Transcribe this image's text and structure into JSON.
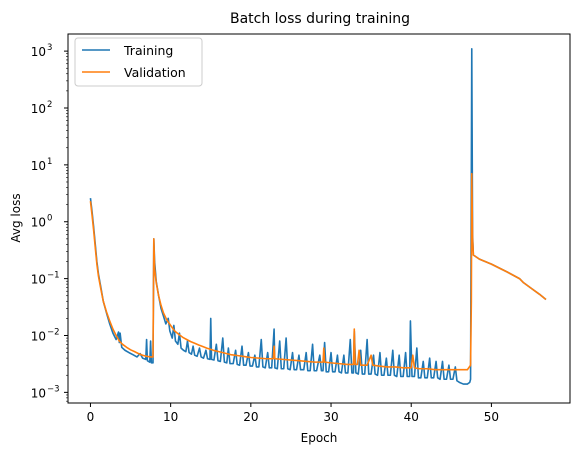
{
  "chart_data": {
    "type": "line",
    "title": "Batch loss during training",
    "xlabel": "Epoch",
    "ylabel": "Avg loss",
    "yscale": "log",
    "xlim": [
      -2.8,
      59.8
    ],
    "ylim": [
      0.00065,
      2000
    ],
    "x_ticks": [
      0,
      10,
      20,
      30,
      40,
      50
    ],
    "x_tick_labels": [
      "0",
      "10",
      "20",
      "30",
      "40",
      "50"
    ],
    "y_ticks": [
      0.001,
      0.01,
      0.1,
      1,
      10,
      100,
      1000
    ],
    "y_tick_labels": [
      "10",
      "10",
      "10",
      "10",
      "10",
      "10",
      "10"
    ],
    "y_tick_exponents": [
      "−3",
      "−2",
      "−1",
      "0",
      "1",
      "2",
      "3"
    ],
    "grid": false,
    "legend_position": "top-left",
    "colors": {
      "training": "#1f77b4",
      "validation": "#ff7f0e"
    },
    "series": [
      {
        "name": "Training",
        "color": "#1f77b4",
        "points": [
          [
            0,
            2.6
          ],
          [
            0.2,
            1.5
          ],
          [
            0.4,
            0.8
          ],
          [
            0.6,
            0.4
          ],
          [
            0.8,
            0.2
          ],
          [
            1.0,
            0.12
          ],
          [
            1.3,
            0.07
          ],
          [
            1.6,
            0.04
          ],
          [
            2.0,
            0.025
          ],
          [
            2.4,
            0.016
          ],
          [
            2.8,
            0.011
          ],
          [
            3.2,
            0.0085
          ],
          [
            3.5,
            0.0115
          ],
          [
            3.6,
            0.0075
          ],
          [
            3.7,
            0.011
          ],
          [
            3.9,
            0.0062
          ],
          [
            4.3,
            0.0055
          ],
          [
            4.8,
            0.005
          ],
          [
            5.3,
            0.0046
          ],
          [
            5.8,
            0.0042
          ],
          [
            6.2,
            0.0048
          ],
          [
            6.5,
            0.004
          ],
          [
            6.9,
            0.0038
          ],
          [
            7.0,
            0.0085
          ],
          [
            7.1,
            0.0036
          ],
          [
            7.4,
            0.0034
          ],
          [
            7.5,
            0.008
          ],
          [
            7.6,
            0.0033
          ],
          [
            7.8,
            0.0033
          ],
          [
            7.9,
            0.5
          ],
          [
            8.0,
            0.2
          ],
          [
            8.2,
            0.09
          ],
          [
            8.5,
            0.05
          ],
          [
            8.8,
            0.03
          ],
          [
            9.1,
            0.022
          ],
          [
            9.4,
            0.016
          ],
          [
            9.7,
            0.02
          ],
          [
            9.9,
            0.012
          ],
          [
            10.2,
            0.009
          ],
          [
            10.4,
            0.015
          ],
          [
            10.6,
            0.008
          ],
          [
            10.9,
            0.007
          ],
          [
            11.1,
            0.011
          ],
          [
            11.3,
            0.006
          ],
          [
            11.6,
            0.0055
          ],
          [
            11.9,
            0.0052
          ],
          [
            12.1,
            0.008
          ],
          [
            12.3,
            0.005
          ],
          [
            12.6,
            0.0047
          ],
          [
            12.8,
            0.0065
          ],
          [
            13.0,
            0.0045
          ],
          [
            13.3,
            0.0043
          ],
          [
            13.6,
            0.006
          ],
          [
            13.8,
            0.0042
          ],
          [
            14.1,
            0.004
          ],
          [
            14.4,
            0.0055
          ],
          [
            14.6,
            0.0039
          ],
          [
            14.9,
            0.0038
          ],
          [
            15.0,
            0.02
          ],
          [
            15.1,
            0.0038
          ],
          [
            15.4,
            0.0037
          ],
          [
            15.7,
            0.007
          ],
          [
            15.9,
            0.0036
          ],
          [
            16.2,
            0.0035
          ],
          [
            16.5,
            0.009
          ],
          [
            16.7,
            0.0034
          ],
          [
            17.0,
            0.0033
          ],
          [
            17.2,
            0.006
          ],
          [
            17.4,
            0.0032
          ],
          [
            17.8,
            0.0032
          ],
          [
            18.1,
            0.0055
          ],
          [
            18.3,
            0.0031
          ],
          [
            18.6,
            0.003
          ],
          [
            18.9,
            0.0065
          ],
          [
            19.1,
            0.003
          ],
          [
            19.4,
            0.003
          ],
          [
            19.7,
            0.005
          ],
          [
            19.9,
            0.0029
          ],
          [
            20.2,
            0.0029
          ],
          [
            20.5,
            0.0045
          ],
          [
            20.7,
            0.0028
          ],
          [
            21.0,
            0.0028
          ],
          [
            21.3,
            0.0085
          ],
          [
            21.5,
            0.0028
          ],
          [
            21.8,
            0.0027
          ],
          [
            22.1,
            0.005
          ],
          [
            22.3,
            0.0027
          ],
          [
            22.6,
            0.0027
          ],
          [
            22.9,
            0.013
          ],
          [
            23.0,
            0.0027
          ],
          [
            23.3,
            0.0026
          ],
          [
            23.6,
            0.008
          ],
          [
            23.8,
            0.0026
          ],
          [
            24.1,
            0.0026
          ],
          [
            24.4,
            0.009
          ],
          [
            24.6,
            0.0026
          ],
          [
            24.9,
            0.0025
          ],
          [
            25.2,
            0.005
          ],
          [
            25.4,
            0.0025
          ],
          [
            25.7,
            0.0025
          ],
          [
            26.0,
            0.0045
          ],
          [
            26.2,
            0.0025
          ],
          [
            26.6,
            0.0025
          ],
          [
            26.9,
            0.005
          ],
          [
            27.1,
            0.0024
          ],
          [
            27.4,
            0.0024
          ],
          [
            27.7,
            0.007
          ],
          [
            27.9,
            0.0024
          ],
          [
            28.2,
            0.0024
          ],
          [
            28.6,
            0.0045
          ],
          [
            28.8,
            0.0024
          ],
          [
            29.0,
            0.0024
          ],
          [
            29.2,
            0.0075
          ],
          [
            29.4,
            0.0023
          ],
          [
            29.7,
            0.0023
          ],
          [
            30.0,
            0.005
          ],
          [
            30.2,
            0.0023
          ],
          [
            30.5,
            0.0023
          ],
          [
            30.8,
            0.0045
          ],
          [
            31.0,
            0.0023
          ],
          [
            31.3,
            0.0022
          ],
          [
            31.6,
            0.0045
          ],
          [
            31.8,
            0.0022
          ],
          [
            32.1,
            0.0022
          ],
          [
            32.4,
            0.0085
          ],
          [
            32.6,
            0.0022
          ],
          [
            32.8,
            0.0022
          ],
          [
            32.9,
            0.012
          ],
          [
            33.1,
            0.0022
          ],
          [
            33.4,
            0.0021
          ],
          [
            33.7,
            0.0055
          ],
          [
            33.9,
            0.0021
          ],
          [
            34.2,
            0.0021
          ],
          [
            34.5,
            0.0085
          ],
          [
            34.7,
            0.0021
          ],
          [
            35.0,
            0.0021
          ],
          [
            35.3,
            0.0045
          ],
          [
            35.5,
            0.0021
          ],
          [
            35.8,
            0.002
          ],
          [
            36.1,
            0.005
          ],
          [
            36.3,
            0.002
          ],
          [
            36.6,
            0.002
          ],
          [
            36.9,
            0.004
          ],
          [
            37.1,
            0.002
          ],
          [
            37.4,
            0.002
          ],
          [
            37.7,
            0.0055
          ],
          [
            37.9,
            0.002
          ],
          [
            38.2,
            0.0019
          ],
          [
            38.5,
            0.0045
          ],
          [
            38.7,
            0.0019
          ],
          [
            39.0,
            0.0019
          ],
          [
            39.3,
            0.005
          ],
          [
            39.5,
            0.0019
          ],
          [
            39.8,
            0.0019
          ],
          [
            39.9,
            0.018
          ],
          [
            40.1,
            0.0019
          ],
          [
            40.4,
            0.0019
          ],
          [
            40.7,
            0.006
          ],
          [
            40.9,
            0.0018
          ],
          [
            41.2,
            0.0018
          ],
          [
            41.5,
            0.0035
          ],
          [
            41.7,
            0.0018
          ],
          [
            42.0,
            0.0018
          ],
          [
            42.3,
            0.004
          ],
          [
            42.5,
            0.0018
          ],
          [
            42.8,
            0.0018
          ],
          [
            43.1,
            0.0035
          ],
          [
            43.3,
            0.0018
          ],
          [
            43.6,
            0.0017
          ],
          [
            43.9,
            0.0035
          ],
          [
            44.1,
            0.0017
          ],
          [
            44.4,
            0.0017
          ],
          [
            44.7,
            0.003
          ],
          [
            44.9,
            0.0017
          ],
          [
            45.2,
            0.0017
          ],
          [
            45.5,
            0.0028
          ],
          [
            45.7,
            0.0016
          ],
          [
            46.0,
            0.0015
          ],
          [
            46.5,
            0.0014
          ],
          [
            47.0,
            0.0014
          ],
          [
            47.3,
            0.0015
          ],
          [
            47.4,
            0.0017
          ],
          [
            47.5,
            10
          ],
          [
            47.55,
            1100
          ],
          [
            47.65,
            0.6
          ],
          [
            47.75,
            0.26
          ],
          [
            48.5,
            0.22
          ],
          [
            50.0,
            0.18
          ],
          [
            52.0,
            0.13
          ],
          [
            53.5,
            0.1
          ],
          [
            54.0,
            0.085
          ],
          [
            55.0,
            0.067
          ],
          [
            56.0,
            0.053
          ],
          [
            56.8,
            0.043
          ]
        ]
      },
      {
        "name": "Validation",
        "color": "#ff7f0e",
        "points": [
          [
            0,
            2.3
          ],
          [
            0.2,
            1.3
          ],
          [
            0.4,
            0.7
          ],
          [
            0.6,
            0.35
          ],
          [
            0.8,
            0.18
          ],
          [
            1.0,
            0.11
          ],
          [
            1.3,
            0.065
          ],
          [
            1.6,
            0.04
          ],
          [
            2.0,
            0.026
          ],
          [
            2.4,
            0.018
          ],
          [
            2.8,
            0.013
          ],
          [
            3.2,
            0.01
          ],
          [
            3.6,
            0.008
          ],
          [
            4.0,
            0.007
          ],
          [
            4.5,
            0.0062
          ],
          [
            5.0,
            0.0056
          ],
          [
            5.5,
            0.0052
          ],
          [
            6.0,
            0.0048
          ],
          [
            6.5,
            0.0045
          ],
          [
            7.0,
            0.0043
          ],
          [
            7.5,
            0.0042
          ],
          [
            7.8,
            0.0042
          ],
          [
            7.9,
            0.5
          ],
          [
            8.0,
            0.15
          ],
          [
            8.2,
            0.085
          ],
          [
            8.5,
            0.05
          ],
          [
            8.8,
            0.034
          ],
          [
            9.1,
            0.025
          ],
          [
            9.5,
            0.019
          ],
          [
            10.0,
            0.015
          ],
          [
            10.5,
            0.012
          ],
          [
            11.0,
            0.0105
          ],
          [
            11.5,
            0.0093
          ],
          [
            12.0,
            0.0085
          ],
          [
            12.5,
            0.0078
          ],
          [
            13.0,
            0.0073
          ],
          [
            13.5,
            0.0068
          ],
          [
            14.0,
            0.0064
          ],
          [
            14.5,
            0.006
          ],
          [
            15.0,
            0.0057
          ],
          [
            15.5,
            0.0054
          ],
          [
            16.0,
            0.0052
          ],
          [
            16.5,
            0.005
          ],
          [
            17.0,
            0.0048
          ],
          [
            17.5,
            0.0046
          ],
          [
            18.0,
            0.0045
          ],
          [
            18.5,
            0.0044
          ],
          [
            19.0,
            0.0043
          ],
          [
            19.5,
            0.0042
          ],
          [
            20.0,
            0.0041
          ],
          [
            21.0,
            0.004
          ],
          [
            22.0,
            0.0039
          ],
          [
            22.8,
            0.0039
          ],
          [
            22.9,
            0.0065
          ],
          [
            23.0,
            0.0039
          ],
          [
            24.0,
            0.0038
          ],
          [
            25.0,
            0.0037
          ],
          [
            26.0,
            0.0036
          ],
          [
            27.0,
            0.0035
          ],
          [
            28.0,
            0.0034
          ],
          [
            29.0,
            0.0034
          ],
          [
            29.1,
            0.006
          ],
          [
            29.2,
            0.0034
          ],
          [
            30.0,
            0.0033
          ],
          [
            31.0,
            0.0032
          ],
          [
            32.0,
            0.0031
          ],
          [
            32.8,
            0.0031
          ],
          [
            32.9,
            0.013
          ],
          [
            33.0,
            0.0031
          ],
          [
            33.3,
            0.0031
          ],
          [
            33.5,
            0.0055
          ],
          [
            33.7,
            0.003
          ],
          [
            34.5,
            0.003
          ],
          [
            35.0,
            0.0045
          ],
          [
            35.2,
            0.003
          ],
          [
            36.0,
            0.0029
          ],
          [
            37.0,
            0.0028
          ],
          [
            38.0,
            0.0028
          ],
          [
            39.0,
            0.0027
          ],
          [
            40.0,
            0.0027
          ],
          [
            40.2,
            0.0045
          ],
          [
            40.4,
            0.0027
          ],
          [
            41.0,
            0.0026
          ],
          [
            42.0,
            0.0026
          ],
          [
            43.0,
            0.0025
          ],
          [
            44.0,
            0.0025
          ],
          [
            45.0,
            0.0025
          ],
          [
            46.0,
            0.0025
          ],
          [
            47.0,
            0.0025
          ],
          [
            47.4,
            0.003
          ],
          [
            47.5,
            0.04
          ],
          [
            47.55,
            7
          ],
          [
            47.65,
            0.5
          ],
          [
            47.75,
            0.26
          ],
          [
            48.5,
            0.22
          ],
          [
            50.0,
            0.18
          ],
          [
            52.0,
            0.13
          ],
          [
            53.5,
            0.1
          ],
          [
            54.0,
            0.085
          ],
          [
            55.0,
            0.067
          ],
          [
            56.0,
            0.053
          ],
          [
            56.8,
            0.043
          ]
        ]
      }
    ]
  }
}
